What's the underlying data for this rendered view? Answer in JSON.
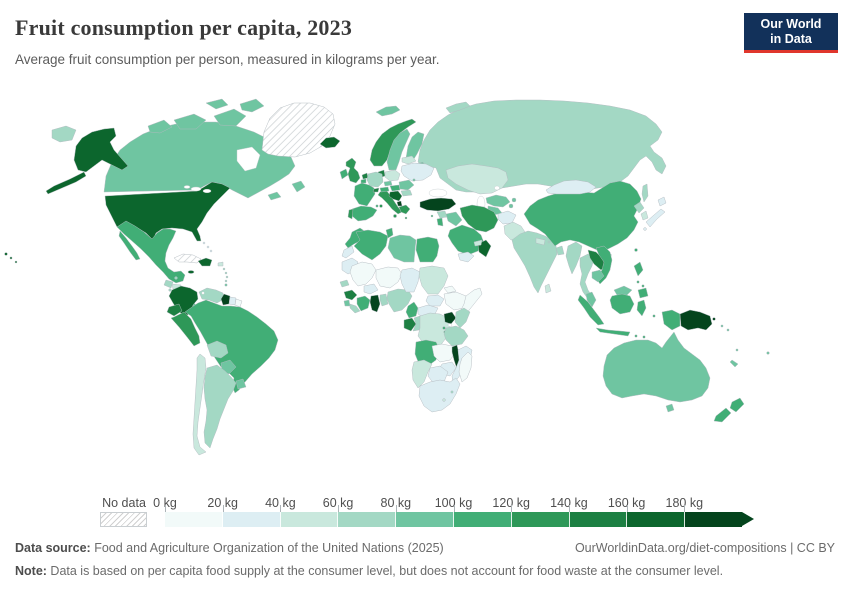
{
  "header": {
    "title": "Fruit consumption per capita, 2023",
    "subtitle": "Average fruit consumption per person, measured in kilograms per year.",
    "logo": {
      "line1": "Our World",
      "line2": "in Data",
      "bg": "#12315a",
      "accent": "#e0362c"
    }
  },
  "legend": {
    "no_data_label": "No data",
    "tick_labels": [
      "0 kg",
      "20 kg",
      "40 kg",
      "60 kg",
      "80 kg",
      "100 kg",
      "120 kg",
      "140 kg",
      "160 kg",
      "180 kg"
    ]
  },
  "map": {
    "bin_colors": [
      "#f2faf9",
      "#ddeef3",
      "#c9e8dd",
      "#a3d8c4",
      "#6fc5a1",
      "#41ae76",
      "#2e9858",
      "#1d8043",
      "#0c662d",
      "#04441d"
    ],
    "countries": {
      "usa": 8,
      "canada": 4,
      "greenland": "nodata",
      "mexico": 5,
      "guatemala": 3,
      "belize": 3,
      "honduras": 2,
      "el-salvador": 3,
      "nicaragua": 2,
      "costa-rica": 5,
      "panama": 4,
      "cuba": "nodata",
      "jamaica": 8,
      "hispaniola": 8,
      "puerto-rico": 2,
      "bahamas": 1,
      "lesser-antilles": 3,
      "trinidad": 4,
      "colombia": 8,
      "venezuela": 3,
      "guyana": 9,
      "suriname": 1,
      "french-guiana": 0,
      "ecuador": 7,
      "peru": 6,
      "brazil": 5,
      "bolivia": 3,
      "paraguay": 4,
      "uruguay": 4,
      "argentina": 3,
      "chile": 2,
      "iceland": 8,
      "norway": 6,
      "sweden": 4,
      "finland": 4,
      "denmark": 7,
      "uk": 6,
      "ireland": 5,
      "netherlands": 7,
      "belgium": 5,
      "germany": 3,
      "france": 5,
      "spain": 5,
      "portugal": 6,
      "italy": 6,
      "switzerland": 7,
      "austria": 5,
      "czechia": 4,
      "poland": 2,
      "hungary-slovakia": 5,
      "balkans": 8,
      "albania": 9,
      "greece": 6,
      "romania": 4,
      "bulgaria": 3,
      "ukraine": 1,
      "belarus": 2,
      "moldova": 4,
      "baltics": 4,
      "svalbard": 4,
      "russia": 3,
      "kazakhstan": 2,
      "uzbekistan": 4,
      "turkmenistan": 4,
      "kyrgyzstan-tajikistan": 4,
      "turkey": 9,
      "cyprus": 5,
      "syria": 3,
      "iraq": 4,
      "israel-jordan": 5,
      "saudi-arabia": 5,
      "yemen": 1,
      "oman": 8,
      "uae": 2,
      "iran": 6,
      "afghanistan": 1,
      "pakistan": 2,
      "india": 3,
      "nepal": 2,
      "bhutan": 3,
      "bangladesh": 3,
      "sri-lanka": 2,
      "china": 5,
      "mongolia": 1,
      "north-korea": 3,
      "south-korea": 2,
      "japan": 1,
      "myanmar": 3,
      "thailand": 3,
      "laos": 7,
      "vietnam": 5,
      "cambodia": 4,
      "malaysia": 4,
      "indonesia": 5,
      "philippines": 5,
      "papua-new-guinea": 9,
      "solomon-islands": 4,
      "vanuatu": 4,
      "new-caledonia": 4,
      "fiji": 4,
      "australia": 4,
      "new-zealand": 5,
      "morocco": 5,
      "western-sahara": 1,
      "algeria": 5,
      "tunisia": 5,
      "libya": 4,
      "egypt": 5,
      "mauritania": 1,
      "mali": 0,
      "senegal": 3,
      "guinea": 7,
      "sierra-leone": 4,
      "liberia": 3,
      "ivory-coast": 5,
      "ghana": 9,
      "togo-benin": 3,
      "burkina-faso": 1,
      "niger": 0,
      "nigeria": 3,
      "chad": 1,
      "sudan": 2,
      "south-sudan": 1,
      "eritrea": 0,
      "ethiopia": 0,
      "somalia": 0,
      "cameroon": 5,
      "central-african-republic": 1,
      "gabon": 7,
      "congo": 3,
      "drc": 2,
      "uganda": 9,
      "kenya": 3,
      "rwanda-burundi": 5,
      "tanzania": 3,
      "angola": 5,
      "zambia": 0,
      "malawi": 9,
      "mozambique": 1,
      "zimbabwe": 1,
      "botswana": 1,
      "namibia": 2,
      "south-africa": 1,
      "lesotho": 2,
      "swaziland": 3,
      "madagascar": 0
    }
  },
  "footer": {
    "source_label": "Data source:",
    "source_text": " Food and Agriculture Organization of the United Nations (2025)",
    "link": "OurWorldinData.org/diet-compositions | CC BY",
    "note_label": "Note:",
    "note_text": " Data is based on per capita food supply at the consumer level, but does not account for food waste at the consumer level."
  }
}
